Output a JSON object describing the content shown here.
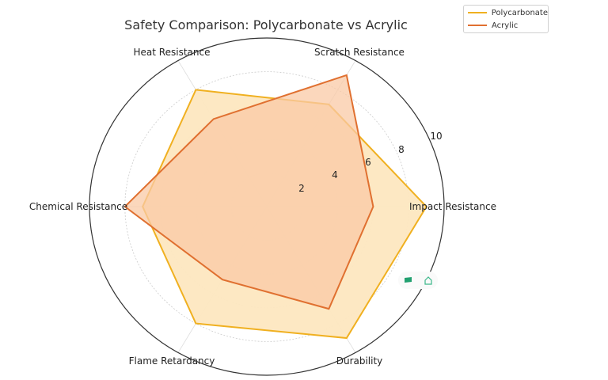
{
  "chart_data": {
    "type": "radar",
    "title": "Safety Comparison: Polycarbonate vs Acrylic",
    "categories": [
      "Impact Resistance",
      "Scratch Resistance",
      "Heat Resistance",
      "Chemical Resistance",
      "Flame Retardancy",
      "Durability"
    ],
    "series": [
      {
        "name": "Polycarbonate",
        "values": [
          9,
          7,
          8,
          7,
          8,
          9
        ],
        "color": "#f0b020",
        "fill": "#fde7c0"
      },
      {
        "name": "Acrylic",
        "values": [
          6,
          9,
          6,
          8,
          5,
          7
        ],
        "color": "#e07030",
        "fill": "#f9c9a6"
      }
    ],
    "radial_ticks": [
      "2",
      "4",
      "6",
      "8",
      "10"
    ],
    "rlim": [
      0,
      10
    ],
    "grid": true,
    "legend_position": "upper right"
  },
  "legend": {
    "items": [
      {
        "label": "Polycarbonate",
        "color": "#f0b020"
      },
      {
        "label": "Acrylic",
        "color": "#e07030"
      }
    ]
  },
  "toolbar": {
    "icons": [
      "flag-icon",
      "home-icon"
    ]
  }
}
